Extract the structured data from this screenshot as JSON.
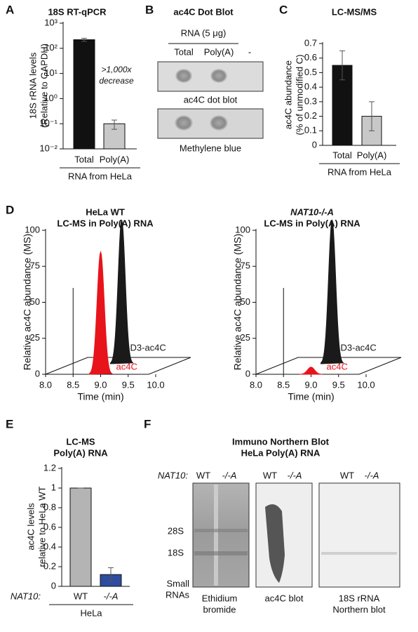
{
  "panel_labels": [
    "A",
    "B",
    "C",
    "D",
    "E",
    "F"
  ],
  "chart_data": [
    {
      "type": "bar",
      "title": "18S RT-qPCR",
      "ylabel": [
        "18S rRNA levels",
        "(Relative to GAPDH)"
      ],
      "categories": [
        "Total",
        "Poly(A)"
      ],
      "values": [
        220,
        0.1
      ],
      "errors": [
        30,
        0.04
      ],
      "colors": [
        "#111111",
        "#c8c8c8"
      ],
      "log_scale": true,
      "ylim": [
        0.01,
        1000
      ],
      "yticks": [
        {
          "value": 0.01,
          "label": "10⁻²"
        },
        {
          "value": 0.1,
          "label": "10⁻¹"
        },
        {
          "value": 1,
          "label": "10⁰"
        },
        {
          "value": 10,
          "label": "10¹"
        },
        {
          "value": 100,
          "label": "10²"
        },
        {
          "value": 1000,
          "label": "10³"
        }
      ],
      "annotation": [
        ">1,000x",
        "decrease"
      ],
      "group_label": "RNA from HeLa"
    },
    {
      "type": "bar",
      "title": "LC-MS/MS",
      "ylabel": [
        "ac4C abundance",
        "(% of unmodified C)"
      ],
      "categories": [
        "Total",
        "Poly(A)"
      ],
      "values": [
        0.55,
        0.2
      ],
      "errors": [
        0.1,
        0.1
      ],
      "colors": [
        "#111111",
        "#c8c8c8"
      ],
      "ylim": [
        0,
        0.7
      ],
      "yticks": [
        0,
        0.1,
        0.2,
        0.3,
        0.4,
        0.5,
        0.6,
        0.7
      ],
      "group_label": "RNA from HeLa"
    },
    {
      "type": "chromatogram",
      "title": [
        "HeLa WT",
        "LC-MS in Poly(A) RNA"
      ],
      "title_italic": false,
      "ylabel": "Relative ac4C abundance (MS)",
      "xlabel": "Time (min)",
      "xlim": [
        8,
        10
      ],
      "xticks": [
        {
          "value": 8,
          "label": "8.0"
        },
        {
          "value": 8.5,
          "label": "8.5"
        },
        {
          "value": 9,
          "label": "9.0"
        },
        {
          "value": 9.5,
          "label": "9.5"
        },
        {
          "value": 10,
          "label": "10.0"
        }
      ],
      "ylim": [
        0,
        100
      ],
      "yticks": [
        0,
        25,
        50,
        75,
        100
      ],
      "series": [
        {
          "name": "D3-ac4C",
          "color": "#1a1a1a",
          "depth": "back",
          "x": [
            9.0
          ],
          "values": [
            100
          ]
        },
        {
          "name": "ac4C",
          "color": "#e8141c",
          "depth": "front",
          "x": [
            9.0
          ],
          "values": [
            85
          ]
        }
      ]
    },
    {
      "type": "chromatogram",
      "title": [
        "NAT10-/-A",
        "LC-MS in Poly(A) RNA"
      ],
      "title_italic": true,
      "ylabel": "Relative ac4C abundance (MS)",
      "xlabel": "Time (min)",
      "xlim": [
        8,
        10
      ],
      "xticks": [
        {
          "value": 8,
          "label": "8.0"
        },
        {
          "value": 8.5,
          "label": "8.5"
        },
        {
          "value": 9,
          "label": "9.0"
        },
        {
          "value": 9.5,
          "label": "9.5"
        },
        {
          "value": 10,
          "label": "10.0"
        }
      ],
      "ylim": [
        0,
        100
      ],
      "yticks": [
        0,
        25,
        50,
        75,
        100
      ],
      "series": [
        {
          "name": "D3-ac4C",
          "color": "#1a1a1a",
          "depth": "back",
          "x": [
            9.0
          ],
          "values": [
            100
          ]
        },
        {
          "name": "ac4C",
          "color": "#e8141c",
          "depth": "front",
          "x": [
            9.0
          ],
          "values": [
            5
          ]
        }
      ]
    },
    {
      "type": "bar",
      "title": [
        "LC-MS",
        "Poly(A) RNA"
      ],
      "ylabel": [
        "ac4C levels",
        "relative to HeLa WT"
      ],
      "categories": [
        "WT",
        "-/-A"
      ],
      "values": [
        1,
        0.12
      ],
      "errors": [
        0,
        0.07
      ],
      "colors": [
        "#b4b4b4",
        "#2f4d9e"
      ],
      "ylim": [
        0,
        1.2
      ],
      "yticks": [
        0,
        0.2,
        0.4,
        0.6,
        0.8,
        1,
        1.2
      ],
      "row_label": "NAT10:",
      "group_label": "HeLa"
    }
  ],
  "dot_blot": {
    "title": "ac4C Dot Blot",
    "amount": "RNA (5 μg)",
    "columns": [
      "Total",
      "Poly(A)",
      "-"
    ],
    "captions": [
      "ac4C dot blot",
      "Methylene blue"
    ]
  },
  "northern_blot": {
    "title": [
      "Immuno Northern Blot",
      "HeLa Poly(A) RNA"
    ],
    "row_label": "NAT10:",
    "lanes": [
      [
        "WT",
        "-/-A"
      ],
      [
        "WT",
        "-/-A"
      ],
      [
        "WT",
        "-/-A"
      ]
    ],
    "markers": [
      "28S",
      "18S",
      "Small",
      "RNAs"
    ],
    "captions": [
      [
        "Ethidium",
        "bromide"
      ],
      [
        "ac4C blot"
      ],
      [
        "18S rRNA",
        "Northern blot"
      ]
    ]
  }
}
